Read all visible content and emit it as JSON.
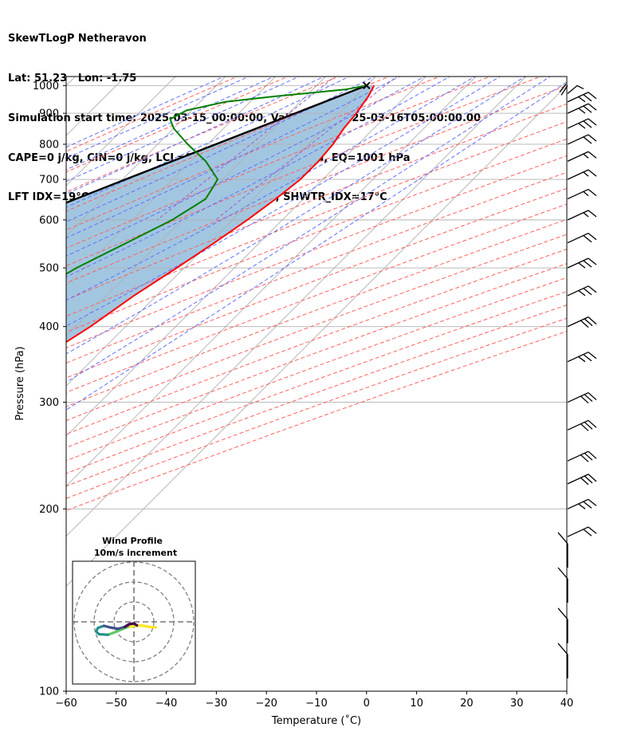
{
  "header": {
    "line1": "SkewTLogP Netheravon",
    "line2": "Lat: 51.23   Lon: -1.75",
    "line3": "Simulation start time: 2025-03-15_00:00:00, Valid time: 2025-03-16T05:00:00.00",
    "line4": "CAPE=0 j/kg, CIN=0 j/kg, LCL=989 hPa, LFC=1005 hPa, EQ=1001 hPa",
    "line5": "LFT IDX=19°C, K IDX=-30°C, TOTAL TOTS=9°C, SHWTR_IDX=17°C"
  },
  "chart_data": {
    "type": "skewt",
    "xlabel": "Temperature (˚C)",
    "ylabel": "Pressure (hPa)",
    "xlim": [
      -60,
      40
    ],
    "ylim": [
      1035,
      100
    ],
    "y_scale": "log",
    "x_ticks": [
      -60,
      -50,
      -40,
      -30,
      -20,
      -10,
      0,
      10,
      20,
      30,
      40
    ],
    "x_tick_labels": [
      "−60",
      "−50",
      "−40",
      "−30",
      "−20",
      "−10",
      "0",
      "10",
      "20",
      "30",
      "40"
    ],
    "y_ticks": [
      1000,
      900,
      800,
      700,
      600,
      500,
      400,
      300,
      200,
      100
    ],
    "y_tick_labels": [
      "1000",
      "900",
      "800",
      "700",
      "600",
      "500",
      "400",
      "300",
      "200",
      "100"
    ],
    "grid": true,
    "colors": {
      "temperature": "#ff0000",
      "dewpoint": "#008000",
      "parcel": "#000000",
      "shade": "#a2c6e0",
      "dry_adiabat": "#ff6060",
      "moist_adiabat": "#6070ff",
      "mixing_ratio": "#9e5cc8",
      "isotherm": "#b0b0b0"
    },
    "temperature": [
      {
        "p": 1000,
        "t": 1.5
      },
      {
        "p": 960,
        "t": 2.5
      },
      {
        "p": 900,
        "t": 3.5
      },
      {
        "p": 850,
        "t": 4.0
      },
      {
        "p": 800,
        "t": 5.0
      },
      {
        "p": 750,
        "t": 5.5
      },
      {
        "p": 700,
        "t": 5.5
      },
      {
        "p": 650,
        "t": 4.5
      },
      {
        "p": 600,
        "t": 3.0
      },
      {
        "p": 550,
        "t": 1.0
      },
      {
        "p": 500,
        "t": -1.5
      },
      {
        "p": 450,
        "t": -4.5
      },
      {
        "p": 400,
        "t": -7.0
      },
      {
        "p": 350,
        "t": -11.0
      },
      {
        "p": 300,
        "t": -15.0
      },
      {
        "p": 270,
        "t": -17.5
      },
      {
        "p": 250,
        "t": -18.5
      },
      {
        "p": 225,
        "t": -18.0
      },
      {
        "p": 200,
        "t": -17.0
      },
      {
        "p": 180,
        "t": -14.5
      },
      {
        "p": 160,
        "t": -10.5
      },
      {
        "p": 140,
        "t": -6.0
      },
      {
        "p": 120,
        "t": -3.5
      },
      {
        "p": 110,
        "t": -1.5
      },
      {
        "p": 100,
        "t": 0.0
      }
    ],
    "dewpoint": [
      {
        "p": 1000,
        "t": 0.0
      },
      {
        "p": 985,
        "t": -3.5
      },
      {
        "p": 960,
        "t": -16.0
      },
      {
        "p": 940,
        "t": -25.0
      },
      {
        "p": 910,
        "t": -31.0
      },
      {
        "p": 880,
        "t": -32.5
      },
      {
        "p": 850,
        "t": -30.0
      },
      {
        "p": 800,
        "t": -24.0
      },
      {
        "p": 750,
        "t": -17.0
      },
      {
        "p": 700,
        "t": -11.0
      },
      {
        "p": 650,
        "t": -9.5
      },
      {
        "p": 600,
        "t": -12.0
      },
      {
        "p": 550,
        "t": -16.5
      },
      {
        "p": 500,
        "t": -21.5
      },
      {
        "p": 450,
        "t": -25.5
      },
      {
        "p": 400,
        "t": -30.0
      },
      {
        "p": 370,
        "t": -32.0
      },
      {
        "p": 350,
        "t": -28.0
      },
      {
        "p": 320,
        "t": -28.5
      },
      {
        "p": 300,
        "t": -34.5
      },
      {
        "p": 270,
        "t": -37.5
      },
      {
        "p": 240,
        "t": -38.5
      },
      {
        "p": 210,
        "t": -37.0
      },
      {
        "p": 190,
        "t": -35.0
      },
      {
        "p": 170,
        "t": -36.0
      },
      {
        "p": 160,
        "t": -37.5
      },
      {
        "p": 150,
        "t": -37.0
      },
      {
        "p": 130,
        "t": -33.0
      },
      {
        "p": 110,
        "t": -30.0
      },
      {
        "p": 100,
        "t": -28.5
      }
    ],
    "parcel": [
      {
        "p": 1000,
        "t": 0.0
      },
      {
        "p": 900,
        "t": -8.7
      },
      {
        "p": 800,
        "t": -18.4
      },
      {
        "p": 700,
        "t": -29.4
      },
      {
        "p": 600,
        "t": -41.9
      },
      {
        "p": 500,
        "t": -56.5
      },
      {
        "p": 400,
        "t": -73.8
      },
      {
        "p": 300,
        "t": -95.6
      },
      {
        "p": 200,
        "t": -122.0
      },
      {
        "p": 100,
        "t": -162.0
      }
    ],
    "wind_barbs": [
      {
        "p": 1000,
        "kind": "calm"
      },
      {
        "p": 970,
        "kind": "light"
      },
      {
        "p": 940,
        "kind": "25"
      },
      {
        "p": 900,
        "kind": "25"
      },
      {
        "p": 850,
        "kind": "25"
      },
      {
        "p": 800,
        "kind": "20"
      },
      {
        "p": 750,
        "kind": "15"
      },
      {
        "p": 700,
        "kind": "15"
      },
      {
        "p": 650,
        "kind": "15"
      },
      {
        "p": 600,
        "kind": "15"
      },
      {
        "p": 550,
        "kind": "20"
      },
      {
        "p": 500,
        "kind": "25"
      },
      {
        "p": 450,
        "kind": "25"
      },
      {
        "p": 400,
        "kind": "30"
      },
      {
        "p": 350,
        "kind": "25"
      },
      {
        "p": 300,
        "kind": "30"
      },
      {
        "p": 270,
        "kind": "30"
      },
      {
        "p": 240,
        "kind": "30"
      },
      {
        "p": 220,
        "kind": "30"
      },
      {
        "p": 200,
        "kind": "25"
      },
      {
        "p": 180,
        "kind": "20"
      },
      {
        "p": 160,
        "kind": "10"
      },
      {
        "p": 140,
        "kind": "10"
      },
      {
        "p": 120,
        "kind": "10"
      },
      {
        "p": 105,
        "kind": "10"
      }
    ],
    "inset": {
      "title": "Wind Profile",
      "subtitle": "10m/s increment",
      "rings": [
        1,
        2,
        3
      ],
      "hodograph": [
        {
          "u": 1.1,
          "v": -0.28
        },
        {
          "u": 0.75,
          "v": -0.25
        },
        {
          "u": 0.35,
          "v": -0.18
        },
        {
          "u": 0.0,
          "v": -0.22
        },
        {
          "u": -0.3,
          "v": -0.25
        },
        {
          "u": -0.55,
          "v": -0.35
        },
        {
          "u": -0.9,
          "v": -0.5
        },
        {
          "u": -1.3,
          "v": -0.65
        },
        {
          "u": -1.75,
          "v": -0.62
        },
        {
          "u": -1.9,
          "v": -0.48
        },
        {
          "u": -1.8,
          "v": -0.3
        },
        {
          "u": -1.5,
          "v": -0.2
        },
        {
          "u": -1.2,
          "v": -0.28
        },
        {
          "u": -0.8,
          "v": -0.35
        },
        {
          "u": -0.45,
          "v": -0.25
        },
        {
          "u": -0.25,
          "v": -0.12
        },
        {
          "u": 0.0,
          "v": -0.08
        },
        {
          "u": 0.15,
          "v": -0.18
        }
      ]
    }
  }
}
